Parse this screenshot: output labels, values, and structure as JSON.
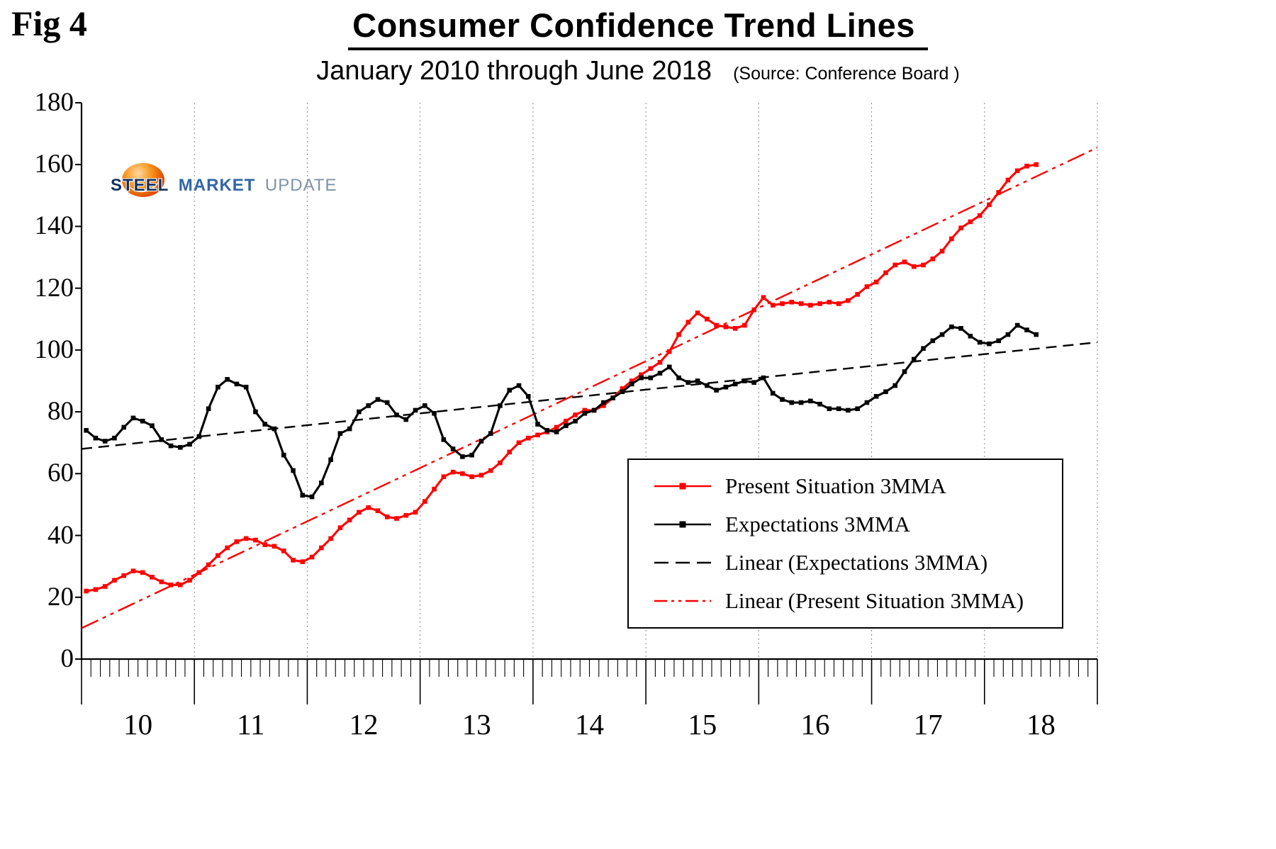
{
  "fig_label": "Fig 4",
  "title": "Consumer Confidence Trend Lines",
  "subtitle": "January 2010 through June 2018",
  "source": "(Source: Conference Board )",
  "logo": {
    "steel": "STEEL",
    "market": "MARKET",
    "update": "UPDATE"
  },
  "colors": {
    "present": "#ff0000",
    "expectations": "#000000",
    "grid": "#888888"
  },
  "chart_data": {
    "type": "line",
    "title": "Consumer Confidence Trend Lines",
    "subtitle": "January 2010 through June 2018",
    "source": "Conference Board",
    "x_start": "2010-01",
    "x_end": "2018-06",
    "x_axis_months_total": 108,
    "year_labels": [
      "10",
      "11",
      "12",
      "13",
      "14",
      "15",
      "16",
      "17",
      "18"
    ],
    "ylim": [
      0,
      180
    ],
    "yticks": [
      0,
      20,
      40,
      60,
      80,
      100,
      120,
      140,
      160,
      180
    ],
    "grid": "vertical-dotted-yearly",
    "legend_position": "right-lower",
    "series": [
      {
        "name": "Present Situation 3MMA",
        "color": "#ff0000",
        "marker": "square",
        "values": [
          22,
          22.5,
          23.5,
          25.5,
          27,
          28.5,
          28,
          26.5,
          25,
          24,
          24,
          25.5,
          28,
          30.5,
          33.5,
          36,
          38,
          39,
          38.5,
          37,
          36.5,
          35,
          32,
          31.5,
          33,
          36,
          39,
          42.5,
          45,
          47.5,
          49,
          48,
          46,
          45.5,
          46.5,
          47.5,
          51,
          55,
          59,
          60.5,
          60,
          59,
          59.5,
          61,
          63.5,
          67,
          70,
          71.5,
          72.5,
          73.5,
          75,
          77,
          79,
          80.5,
          80.5,
          82,
          84.5,
          87.5,
          90,
          92,
          94,
          96,
          99.5,
          105,
          109,
          112,
          110,
          108,
          107.5,
          107,
          108,
          113,
          117,
          114.5,
          115,
          115.5,
          115,
          114.5,
          115,
          115.5,
          115,
          116,
          118,
          120.5,
          122,
          125,
          127.5,
          128.5,
          127,
          127.5,
          129.5,
          132,
          136,
          139.5,
          141.5,
          143.5,
          147,
          151,
          155,
          158,
          159.5,
          160
        ]
      },
      {
        "name": "Expectations 3MMA",
        "color": "#000000",
        "marker": "square",
        "values": [
          74,
          71.5,
          70.5,
          71.5,
          75,
          78,
          77,
          75.5,
          71,
          69,
          68.5,
          69.5,
          72,
          81,
          88,
          90.5,
          89,
          88,
          80,
          76,
          74.5,
          66,
          61,
          53,
          52.5,
          57,
          64.5,
          73,
          74.5,
          80,
          82,
          84,
          83,
          79,
          77.5,
          80.5,
          82,
          79.5,
          71,
          68,
          65.5,
          66,
          70.5,
          73,
          82,
          87,
          88.5,
          85,
          76,
          74,
          73.5,
          75.5,
          77,
          79.5,
          80.5,
          83,
          84.5,
          86.5,
          89,
          91,
          91,
          92.5,
          94.5,
          91,
          89.5,
          90,
          88.5,
          87,
          88,
          89,
          90,
          89.5,
          91,
          86,
          84,
          83,
          83,
          83.5,
          82.5,
          81,
          81,
          80.5,
          81,
          83,
          85,
          86.5,
          88.5,
          93,
          97,
          100.5,
          103,
          105,
          107.5,
          107,
          104.5,
          102.5,
          102,
          103,
          105,
          108,
          106.5,
          105
        ]
      }
    ],
    "trendlines": [
      {
        "name": "Linear (Expectations 3MMA)",
        "color": "#000000",
        "style": "dashed",
        "start_value": 68,
        "end_value": 102.5
      },
      {
        "name": "Linear (Present Situation 3MMA)",
        "color": "#ff0000",
        "style": "dashdot",
        "start_value": 10,
        "end_value": 165.5
      }
    ],
    "legend_items": [
      {
        "label": "Present Situation 3MMA",
        "color": "#ff0000",
        "style": "solid",
        "marker": true
      },
      {
        "label": "Expectations 3MMA",
        "color": "#000000",
        "style": "solid",
        "marker": true
      },
      {
        "label": "Linear (Expectations 3MMA)",
        "color": "#000000",
        "style": "dashed",
        "marker": false
      },
      {
        "label": "Linear (Present Situation 3MMA)",
        "color": "#ff0000",
        "style": "dashdot",
        "marker": false
      }
    ]
  }
}
